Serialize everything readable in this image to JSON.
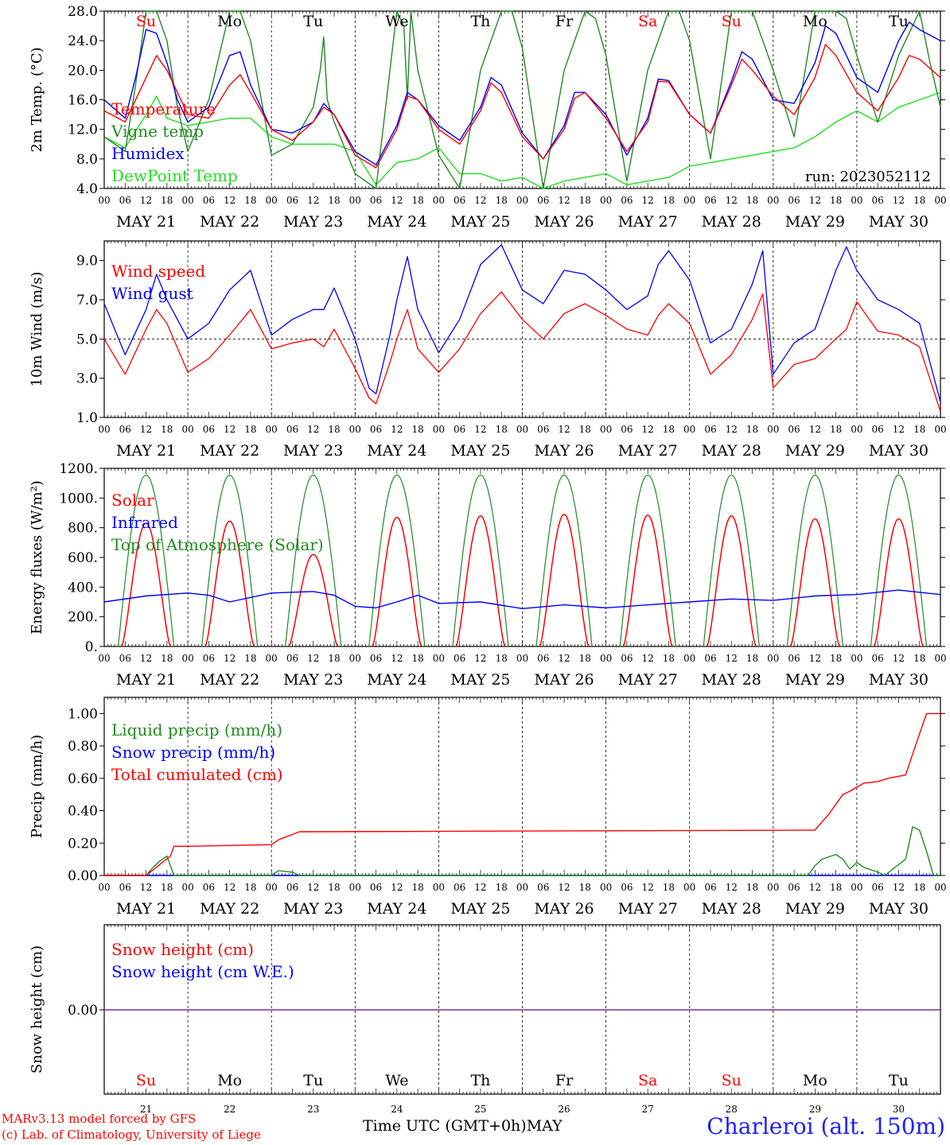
{
  "days": {
    "weekday_labels": [
      "Su",
      "Mo",
      "Tu",
      "We",
      "Th",
      "Fr",
      "Sa",
      "Su",
      "Mo",
      "Tu"
    ],
    "weekday_colors": [
      "#ff0000",
      "#000000",
      "#000000",
      "#000000",
      "#000000",
      "#000000",
      "#ff0000",
      "#ff0000",
      "#000000",
      "#000000"
    ],
    "date_labels": [
      "MAY 21",
      "MAY 22",
      "MAY 23",
      "MAY 24",
      "MAY 25",
      "MAY 26",
      "MAY 27",
      "MAY 28",
      "MAY 29",
      "MAY 30"
    ],
    "day_numbers": [
      "21",
      "22",
      "23",
      "24",
      "25",
      "26",
      "27",
      "28",
      "29",
      "30"
    ],
    "hour_ticks": [
      "00",
      "06",
      "12",
      "18"
    ],
    "final_hour": "00"
  },
  "footer": {
    "credit_line1": "MARv3.13 model forced by GFS",
    "credit_line2": "(c) Lab. of Climatology, University of Liege",
    "time_label": "Time UTC (GMT+0h)",
    "month_label": "MAY",
    "site_label": "Charleroi (alt. 150m)"
  },
  "chart_data": [
    {
      "id": "temp",
      "type": "line",
      "ylabel": "2m Temp. (°C)",
      "ylim": [
        4,
        28
      ],
      "yticks": [
        "4.0",
        "8.0",
        "12.0",
        "16.0",
        "20.0",
        "24.0",
        "28.0"
      ],
      "x_unit": "hours since 2023-05-21 00 UTC",
      "xlim": [
        0,
        240
      ],
      "show_weekdays": true,
      "annotation": "run: 2023052112",
      "legend_position": "left",
      "series": [
        {
          "name": "Temperature",
          "color": "#ff0000",
          "x": [
            0,
            6,
            12,
            15,
            18,
            24,
            30,
            36,
            39,
            42,
            48,
            54,
            60,
            63,
            66,
            72,
            78,
            84,
            87,
            90,
            96,
            102,
            108,
            111,
            114,
            120,
            126,
            132,
            135,
            138,
            144,
            150,
            156,
            159,
            162,
            168,
            174,
            180,
            183,
            186,
            192,
            198,
            204,
            207,
            210,
            216,
            222,
            228,
            231,
            234,
            240
          ],
          "y": [
            14.5,
            13,
            19,
            22,
            20,
            14,
            13.5,
            18,
            19.4,
            17,
            12,
            10.5,
            13,
            15,
            14,
            8.5,
            6.8,
            12,
            16.5,
            16,
            12,
            10,
            14.5,
            18.3,
            17,
            11,
            8,
            12,
            16.2,
            17,
            13.5,
            9,
            13,
            18.5,
            18.4,
            14,
            11.5,
            18,
            21.5,
            20,
            16.5,
            14,
            19,
            23.5,
            22,
            17,
            14.5,
            19,
            22,
            21.5,
            19
          ]
        },
        {
          "name": "Vigne temp",
          "color": "#228b22",
          "x": [
            0,
            6,
            9,
            12,
            15,
            18,
            21,
            24,
            30,
            36,
            39,
            42,
            48,
            54,
            60,
            62,
            63,
            64,
            66,
            72,
            78,
            82,
            84,
            86,
            87,
            88,
            90,
            96,
            102,
            108,
            114,
            117,
            120,
            126,
            132,
            138,
            141,
            144,
            150,
            156,
            162,
            165,
            168,
            174,
            180,
            186,
            189,
            192,
            198,
            204,
            210,
            213,
            216,
            222,
            228,
            234,
            237,
            240
          ],
          "y": [
            11,
            9,
            18,
            28,
            28,
            24,
            15,
            9,
            16,
            28,
            28,
            24,
            8.5,
            10,
            15,
            20,
            24.5,
            16,
            13,
            6,
            4,
            20,
            28,
            26,
            16,
            28,
            20,
            8.5,
            4,
            20,
            28,
            28,
            23,
            4,
            20,
            28,
            27,
            22,
            5,
            20,
            28,
            28,
            24,
            8,
            28,
            28,
            24,
            20,
            11,
            28,
            28,
            27,
            22,
            13,
            22,
            28,
            21,
            15
          ]
        },
        {
          "name": "Humidex",
          "color": "#0000ff",
          "x": [
            0,
            6,
            9,
            12,
            15,
            18,
            21,
            24,
            30,
            36,
            39,
            42,
            48,
            54,
            60,
            63,
            66,
            72,
            78,
            84,
            87,
            90,
            96,
            102,
            108,
            111,
            114,
            120,
            126,
            132,
            135,
            138,
            144,
            150,
            156,
            159,
            162,
            168,
            174,
            180,
            183,
            186,
            192,
            198,
            204,
            207,
            210,
            216,
            222,
            228,
            231,
            234,
            240
          ],
          "y": [
            16,
            13.5,
            19,
            25.5,
            25,
            21,
            16,
            13,
            15,
            22,
            22.5,
            18,
            12,
            11.5,
            13,
            15.5,
            14,
            9,
            7.2,
            12.5,
            17,
            16,
            12.5,
            10.5,
            15,
            19,
            18,
            11.5,
            8,
            12.5,
            17,
            17,
            14,
            8.5,
            13.5,
            18.8,
            18.6,
            14,
            11.5,
            18.5,
            22.5,
            21.5,
            16,
            15.5,
            21,
            26,
            25,
            19,
            17,
            24,
            26.5,
            25.5,
            24
          ]
        },
        {
          "name": "DewPoint Temp",
          "color": "#22dd22",
          "x": [
            0,
            6,
            12,
            15,
            18,
            24,
            30,
            36,
            42,
            48,
            54,
            60,
            66,
            72,
            78,
            84,
            90,
            96,
            102,
            108,
            114,
            120,
            126,
            132,
            138,
            144,
            150,
            156,
            162,
            168,
            174,
            180,
            186,
            192,
            198,
            204,
            210,
            216,
            222,
            228,
            234,
            240
          ],
          "y": [
            11,
            9.5,
            14,
            16.5,
            13.5,
            12.5,
            13,
            13.5,
            13.5,
            11,
            10,
            10,
            10,
            9,
            4.5,
            7.5,
            8,
            9.5,
            6,
            6,
            5,
            5.5,
            4,
            5,
            5.5,
            6,
            4.5,
            5,
            5.5,
            7,
            7.5,
            8,
            8.5,
            9,
            9.5,
            11,
            13,
            14.5,
            13,
            15,
            16,
            17
          ]
        }
      ]
    },
    {
      "id": "wind",
      "type": "line",
      "ylabel": "10m Wind (m/s)",
      "ylim": [
        1,
        10
      ],
      "yticks": [
        "1.0",
        "3.0",
        "5.0",
        "7.0",
        "9.0"
      ],
      "xlim": [
        0,
        240
      ],
      "reference_line": 5,
      "legend_position": "left",
      "series": [
        {
          "name": "Wind speed",
          "color": "#ff0000",
          "x": [
            0,
            6,
            12,
            15,
            18,
            24,
            30,
            36,
            42,
            48,
            54,
            60,
            63,
            66,
            72,
            76,
            78,
            82,
            84,
            87,
            90,
            96,
            102,
            108,
            114,
            120,
            126,
            132,
            138,
            144,
            150,
            156,
            159,
            162,
            168,
            174,
            180,
            186,
            189,
            192,
            198,
            204,
            210,
            213,
            216,
            222,
            228,
            234,
            240
          ],
          "y": [
            5,
            3.2,
            5.5,
            6.5,
            5.8,
            3.3,
            4,
            5.2,
            6.5,
            4.5,
            4.8,
            5,
            4.6,
            5.5,
            3.5,
            2,
            1.7,
            3.8,
            5,
            6.5,
            4.5,
            3.3,
            4.5,
            6.3,
            7.4,
            6,
            5,
            6.3,
            6.8,
            6.2,
            5.5,
            5.2,
            6.2,
            6.8,
            5.8,
            3.2,
            4.2,
            6,
            7.3,
            2.5,
            3.7,
            4,
            5,
            5.5,
            6.9,
            5.4,
            5.2,
            4.6,
            1.3
          ]
        },
        {
          "name": "Wind gust",
          "color": "#0000ff",
          "x": [
            0,
            6,
            12,
            15,
            18,
            24,
            30,
            36,
            42,
            48,
            54,
            60,
            63,
            66,
            72,
            76,
            78,
            82,
            84,
            87,
            90,
            96,
            102,
            108,
            114,
            120,
            126,
            132,
            138,
            144,
            150,
            156,
            159,
            162,
            168,
            174,
            180,
            186,
            189,
            192,
            198,
            204,
            210,
            213,
            216,
            222,
            228,
            234,
            240
          ],
          "y": [
            6.8,
            4.2,
            6.5,
            8.3,
            7,
            5,
            5.8,
            7.5,
            8.5,
            5.2,
            6,
            6.5,
            6.5,
            7.6,
            5,
            2.5,
            2.2,
            5.2,
            7,
            9.2,
            6.5,
            4.3,
            6,
            8.8,
            9.8,
            7.5,
            6.8,
            8.5,
            8.3,
            7.5,
            6.5,
            7.2,
            8.8,
            9.5,
            8,
            4.8,
            5.5,
            7.8,
            9.5,
            3.2,
            4.8,
            5.5,
            8.5,
            9.7,
            8.5,
            7,
            6.5,
            5.8,
            1.8
          ]
        }
      ]
    },
    {
      "id": "energy",
      "type": "line",
      "ylabel": "Energy fluxes (W/m²)",
      "ylim": [
        0,
        1200
      ],
      "yticks": [
        "0.",
        "200.",
        "400.",
        "600.",
        "800.",
        "1000.",
        "1200."
      ],
      "xlim": [
        0,
        240
      ],
      "legend_position": "left",
      "toa_peak": 1155,
      "solar_peaks": [
        830,
        845,
        620,
        870,
        880,
        890,
        885,
        880,
        860,
        860
      ],
      "series": [
        {
          "name": "Solar",
          "color": "#ff0000"
        },
        {
          "name": "Infrared",
          "color": "#0000ff",
          "x": [
            0,
            12,
            24,
            30,
            36,
            48,
            60,
            66,
            72,
            78,
            84,
            90,
            96,
            108,
            120,
            132,
            144,
            156,
            168,
            180,
            192,
            204,
            216,
            228,
            240
          ],
          "y": [
            300,
            340,
            360,
            345,
            300,
            360,
            370,
            345,
            270,
            260,
            300,
            345,
            290,
            300,
            255,
            280,
            260,
            280,
            300,
            320,
            310,
            340,
            350,
            380,
            350
          ]
        },
        {
          "name": "Top of Atmosphere (Solar)",
          "color": "#228b22"
        }
      ]
    },
    {
      "id": "precip",
      "type": "line",
      "ylabel": "Precip (mm/h)",
      "ylim": [
        0,
        1.1
      ],
      "yticks": [
        "0.00",
        "0.20",
        "0.40",
        "0.60",
        "0.80",
        "1.00"
      ],
      "xlim": [
        0,
        240
      ],
      "legend_position": "left",
      "series": [
        {
          "name": "Liquid precip (mm/h)",
          "color": "#228b22",
          "x": [
            0,
            12,
            14,
            16,
            18,
            19,
            20,
            24,
            48,
            50,
            54,
            56,
            60,
            202,
            204,
            206,
            210,
            212,
            214,
            216,
            218,
            222,
            224,
            230,
            232,
            234,
            236,
            238,
            240
          ],
          "y": [
            0,
            0,
            0.05,
            0.09,
            0.12,
            0.06,
            0,
            0,
            0,
            0.03,
            0.02,
            0,
            0,
            0,
            0.06,
            0.1,
            0.13,
            0.1,
            0.04,
            0.08,
            0.05,
            0.02,
            0,
            0.1,
            0.3,
            0.28,
            0.15,
            0,
            0
          ]
        },
        {
          "name": "Snow precip (mm/h)",
          "color": "#0000ff",
          "x": [
            0,
            240
          ],
          "y": [
            0,
            0
          ]
        },
        {
          "name": "Total cumulated (cm)",
          "color": "#ff0000",
          "x": [
            0,
            12,
            19,
            20,
            24,
            48,
            50,
            56,
            60,
            204,
            208,
            212,
            214,
            218,
            222,
            225,
            230,
            232,
            236,
            240
          ],
          "y": [
            0,
            0,
            0.12,
            0.18,
            0.18,
            0.19,
            0.22,
            0.27,
            0.27,
            0.28,
            0.38,
            0.5,
            0.52,
            0.57,
            0.58,
            0.6,
            0.62,
            0.75,
            1.0,
            1.0
          ]
        }
      ]
    },
    {
      "id": "snow",
      "type": "line",
      "ylabel": "Snow height (cm)",
      "yticks": [
        "0.00"
      ],
      "xlim": [
        0,
        240
      ],
      "legend_position": "left",
      "series": [
        {
          "name": "Snow height (cm)",
          "color": "#ff0000",
          "x": [
            0,
            240
          ],
          "y": [
            0,
            0
          ]
        },
        {
          "name": "Snow height (cm W.E.)",
          "color": "#0000ff",
          "x": [
            0,
            240
          ],
          "y": [
            0,
            0
          ]
        }
      ],
      "overlay_color": "#7a2aa0"
    }
  ]
}
